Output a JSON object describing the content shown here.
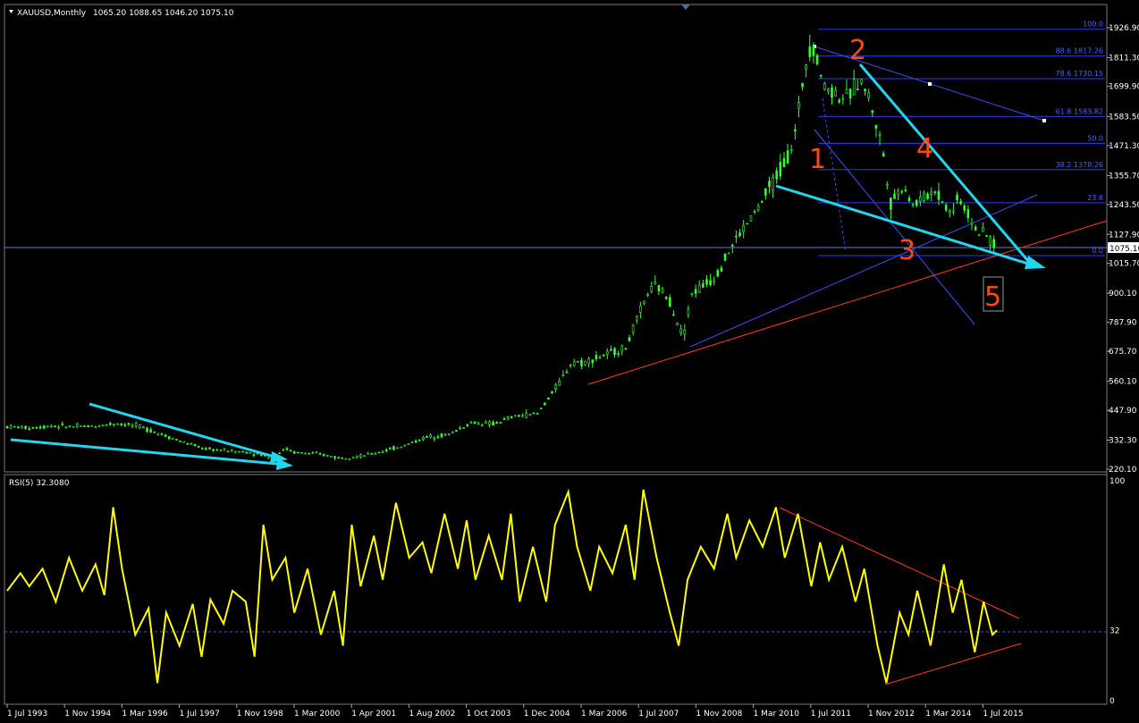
{
  "chart_data": [
    {
      "type": "line",
      "panel": "price",
      "symbol_header": "XAUUSD,Monthly",
      "ohlc_header": "1065.20 1088.65 1046.20 1075.10",
      "current_price": "1075.10",
      "y_ticks": [
        "1926.90",
        "1811.30",
        "1699.90",
        "1583.50",
        "1471.30",
        "1355.70",
        "1243.50",
        "1127.90",
        "1015.70",
        "900.10",
        "787.90",
        "675.70",
        "560.10",
        "447.90",
        "332.30",
        "220.10"
      ],
      "ylim": [
        220.1,
        1926.9
      ],
      "x_ticks": [
        "1 Jul 1993",
        "1 Nov 1994",
        "1 Mar 1996",
        "1 Jul 1997",
        "1 Nov 1998",
        "1 Mar 2000",
        "1 Apr 2001",
        "1 Aug 2002",
        "1 Oct 2003",
        "1 Dec 2004",
        "1 Mar 2006",
        "1 Jul 2007",
        "1 Nov 2008",
        "1 Mar 2010",
        "1 Jul 2011",
        "1 Nov 2012",
        "1 Mar 2014",
        "1 Jul 2015"
      ],
      "fib_levels": [
        {
          "level": 100.0,
          "label": "100.0",
          "price": 1921
        },
        {
          "level": 88.6,
          "label": "88.6 1817.26",
          "price": 1817.26
        },
        {
          "level": 78.6,
          "label": "78.6 1730.15",
          "price": 1730.15
        },
        {
          "level": 61.8,
          "label": "61.8 1583.82",
          "price": 1583.82
        },
        {
          "level": 50.0,
          "label": "50.0",
          "price": 1480
        },
        {
          "level": 38.2,
          "label": "38.2 1378.26",
          "price": 1378.26
        },
        {
          "level": 23.6,
          "label": "23.6",
          "price": 1250
        },
        {
          "level": 0.0,
          "label": "0.0",
          "price": 1046
        }
      ],
      "wave_labels": [
        "1",
        "2",
        "3",
        "4",
        "5"
      ],
      "series": [
        {
          "values": [
            [
              1993.5,
              385
            ],
            [
              1994.0,
              380
            ],
            [
              1994.5,
              388
            ],
            [
              1995.0,
              385
            ],
            [
              1995.5,
              387
            ],
            [
              1996.0,
              398
            ],
            [
              1996.5,
              385
            ],
            [
              1997.0,
              355
            ],
            [
              1997.5,
              325
            ],
            [
              1998.0,
              298
            ],
            [
              1998.5,
              292
            ],
            [
              1999.0,
              285
            ],
            [
              1999.5,
              265
            ],
            [
              1999.8,
              300
            ],
            [
              2000.0,
              285
            ],
            [
              2000.5,
              280
            ],
            [
              2001.0,
              265
            ],
            [
              2001.5,
              270
            ],
            [
              2002.0,
              290
            ],
            [
              2002.5,
              312
            ],
            [
              2003.0,
              345
            ],
            [
              2003.5,
              355
            ],
            [
              2004.0,
              400
            ],
            [
              2004.5,
              395
            ],
            [
              2005.0,
              425
            ],
            [
              2005.5,
              435
            ],
            [
              2006.0,
              555
            ],
            [
              2006.3,
              640
            ],
            [
              2006.5,
              630
            ],
            [
              2007.0,
              660
            ],
            [
              2007.5,
              690
            ],
            [
              2008.0,
              900
            ],
            [
              2008.2,
              930
            ],
            [
              2008.5,
              870
            ],
            [
              2008.8,
              730
            ],
            [
              2009.0,
              900
            ],
            [
              2009.5,
              960
            ],
            [
              2010.0,
              1110
            ],
            [
              2010.5,
              1230
            ],
            [
              2011.0,
              1380
            ],
            [
              2011.3,
              1480
            ],
            [
              2011.6,
              1820
            ],
            [
              2011.7,
              1880
            ],
            [
              2012.0,
              1700
            ],
            [
              2012.5,
              1650
            ],
            [
              2012.8,
              1730
            ],
            [
              2013.0,
              1660
            ],
            [
              2013.3,
              1470
            ],
            [
              2013.5,
              1250
            ],
            [
              2013.8,
              1320
            ],
            [
              2014.0,
              1240
            ],
            [
              2014.5,
              1300
            ],
            [
              2014.9,
              1200
            ],
            [
              2015.0,
              1280
            ],
            [
              2015.5,
              1130
            ],
            [
              2015.7,
              1120
            ],
            [
              2015.9,
              1075
            ]
          ]
        }
      ]
    },
    {
      "type": "line",
      "panel": "indicator",
      "indicator_header": "RSI(5) 32.3080",
      "y_ticks": [
        "100",
        "32",
        "0"
      ],
      "ylim": [
        0,
        100
      ],
      "level_line": 32,
      "series": [
        {
          "name": "RSI(5)",
          "values": [
            [
              1993.5,
              50
            ],
            [
              1993.8,
              58
            ],
            [
              1994.0,
              52
            ],
            [
              1994.3,
              60
            ],
            [
              1994.6,
              45
            ],
            [
              1994.9,
              65
            ],
            [
              1995.2,
              50
            ],
            [
              1995.5,
              62
            ],
            [
              1995.7,
              48
            ],
            [
              1995.9,
              88
            ],
            [
              1996.1,
              60
            ],
            [
              1996.4,
              30
            ],
            [
              1996.7,
              42
            ],
            [
              1996.9,
              8
            ],
            [
              1997.1,
              40
            ],
            [
              1997.4,
              25
            ],
            [
              1997.7,
              44
            ],
            [
              1997.9,
              20
            ],
            [
              1998.1,
              46
            ],
            [
              1998.4,
              35
            ],
            [
              1998.6,
              50
            ],
            [
              1998.9,
              45
            ],
            [
              1999.1,
              20
            ],
            [
              1999.3,
              80
            ],
            [
              1999.5,
              55
            ],
            [
              1999.8,
              65
            ],
            [
              2000.0,
              40
            ],
            [
              2000.3,
              60
            ],
            [
              2000.6,
              30
            ],
            [
              2000.9,
              50
            ],
            [
              2001.1,
              25
            ],
            [
              2001.3,
              80
            ],
            [
              2001.5,
              52
            ],
            [
              2001.8,
              75
            ],
            [
              2002.0,
              55
            ],
            [
              2002.3,
              90
            ],
            [
              2002.6,
              65
            ],
            [
              2002.9,
              72
            ],
            [
              2003.1,
              58
            ],
            [
              2003.4,
              85
            ],
            [
              2003.7,
              60
            ],
            [
              2003.9,
              82
            ],
            [
              2004.1,
              55
            ],
            [
              2004.4,
              75
            ],
            [
              2004.7,
              55
            ],
            [
              2004.9,
              85
            ],
            [
              2005.1,
              45
            ],
            [
              2005.4,
              70
            ],
            [
              2005.7,
              45
            ],
            [
              2005.9,
              80
            ],
            [
              2006.2,
              95
            ],
            [
              2006.4,
              70
            ],
            [
              2006.7,
              50
            ],
            [
              2006.9,
              70
            ],
            [
              2007.2,
              58
            ],
            [
              2007.5,
              80
            ],
            [
              2007.7,
              55
            ],
            [
              2007.9,
              96
            ],
            [
              2008.2,
              65
            ],
            [
              2008.5,
              40
            ],
            [
              2008.7,
              25
            ],
            [
              2008.9,
              55
            ],
            [
              2009.2,
              70
            ],
            [
              2009.5,
              60
            ],
            [
              2009.8,
              85
            ],
            [
              2010.0,
              65
            ],
            [
              2010.3,
              82
            ],
            [
              2010.6,
              70
            ],
            [
              2010.9,
              88
            ],
            [
              2011.1,
              65
            ],
            [
              2011.4,
              85
            ],
            [
              2011.7,
              52
            ],
            [
              2011.9,
              72
            ],
            [
              2012.1,
              55
            ],
            [
              2012.4,
              70
            ],
            [
              2012.7,
              45
            ],
            [
              2012.9,
              60
            ],
            [
              2013.2,
              25
            ],
            [
              2013.4,
              8
            ],
            [
              2013.7,
              40
            ],
            [
              2013.9,
              30
            ],
            [
              2014.1,
              50
            ],
            [
              2014.4,
              25
            ],
            [
              2014.7,
              62
            ],
            [
              2014.9,
              40
            ],
            [
              2015.1,
              55
            ],
            [
              2015.4,
              22
            ],
            [
              2015.6,
              45
            ],
            [
              2015.8,
              30
            ],
            [
              2015.9,
              32
            ]
          ]
        }
      ]
    }
  ],
  "colors": {
    "background": "#000000",
    "candle": "#33ff33",
    "fib": "#2d3ef0",
    "trend_red": "#ff3b1f",
    "arrow": "#22d6ee",
    "rsi": "#ffff00",
    "text": "#ffffff",
    "wave_label": "#ff4a14"
  }
}
